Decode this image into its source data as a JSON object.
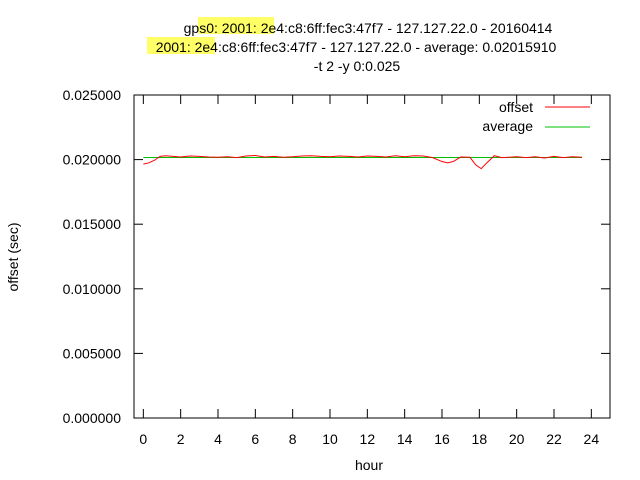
{
  "chart_data": {
    "type": "line",
    "title_lines": [
      "gps0: 2001:            2e4:c8:6ff:fec3:47f7 - 127.127.22.0 - 20160414",
      "2001:            2e4:c8:6ff:fec3:47f7 - 127.127.22.0 - average: 0.02015910",
      "-t 2 -y 0:0.025"
    ],
    "xlabel": "hour",
    "ylabel": "offset (sec)",
    "xlim": [
      -0.5,
      25
    ],
    "ylim": [
      0,
      0.025
    ],
    "x_ticks": [
      0,
      2,
      4,
      6,
      8,
      10,
      12,
      14,
      16,
      18,
      20,
      22,
      24
    ],
    "x_tick_labels": [
      "0",
      "2",
      "4",
      "6",
      "8",
      "10",
      "12",
      "14",
      "16",
      "18",
      "20",
      "22",
      "24"
    ],
    "y_ticks": [
      0,
      0.005,
      0.01,
      0.015,
      0.02,
      0.025
    ],
    "y_tick_labels": [
      "0.000000",
      "0.005000",
      "0.010000",
      "0.015000",
      "0.020000",
      "0.025000"
    ],
    "grid": false,
    "legend_position": "top-right",
    "series": [
      {
        "name": "offset",
        "color": "#ff0000",
        "x": [
          0,
          0.3,
          0.6,
          0.9,
          1.2,
          1.6,
          2.0,
          2.5,
          3.0,
          3.5,
          4.0,
          4.5,
          5.0,
          5.5,
          6.0,
          6.5,
          7.0,
          7.5,
          8.0,
          8.5,
          9.0,
          9.5,
          10.0,
          10.5,
          11.0,
          11.5,
          12.0,
          12.5,
          13.0,
          13.5,
          14.0,
          14.5,
          15.0,
          15.5,
          16.0,
          16.3,
          16.6,
          17.0,
          17.5,
          17.8,
          18.1,
          18.4,
          18.8,
          19.2,
          19.6,
          20.0,
          20.5,
          21.0,
          21.5,
          22.0,
          22.5,
          23.0,
          23.5
        ],
        "values": [
          0.01965,
          0.01975,
          0.01995,
          0.02025,
          0.0203,
          0.02025,
          0.0202,
          0.02028,
          0.02025,
          0.0202,
          0.02018,
          0.02022,
          0.02015,
          0.02028,
          0.02032,
          0.0202,
          0.02025,
          0.02018,
          0.02022,
          0.02028,
          0.0203,
          0.02025,
          0.02022,
          0.02028,
          0.02025,
          0.0202,
          0.02028,
          0.02025,
          0.0202,
          0.0203,
          0.02022,
          0.0203,
          0.02028,
          0.02015,
          0.01985,
          0.01975,
          0.01985,
          0.0202,
          0.02018,
          0.0196,
          0.0193,
          0.01975,
          0.0203,
          0.02015,
          0.02018,
          0.02022,
          0.02015,
          0.02022,
          0.02012,
          0.02025,
          0.02015,
          0.02022,
          0.02018
        ]
      },
      {
        "name": "average",
        "color": "#00c000",
        "x": [
          0,
          23.5
        ],
        "values": [
          0.0201591,
          0.0201591
        ]
      }
    ]
  }
}
